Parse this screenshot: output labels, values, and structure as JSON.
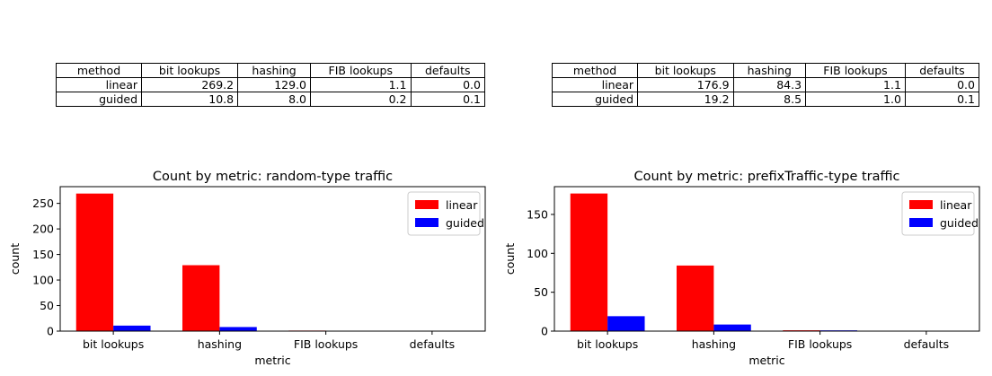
{
  "tables": [
    {
      "headers": [
        "method",
        "bit lookups",
        "hashing",
        "FIB lookups",
        "defaults"
      ],
      "rows": [
        [
          "linear",
          "269.2",
          "129.0",
          "1.1",
          "0.0"
        ],
        [
          "guided",
          "10.8",
          "8.0",
          "0.2",
          "0.1"
        ]
      ]
    },
    {
      "headers": [
        "method",
        "bit lookups",
        "hashing",
        "FIB lookups",
        "defaults"
      ],
      "rows": [
        [
          "linear",
          "176.9",
          "84.3",
          "1.1",
          "0.0"
        ],
        [
          "guided",
          "19.2",
          "8.5",
          "1.0",
          "0.1"
        ]
      ]
    }
  ],
  "chart_data": [
    {
      "type": "bar",
      "title": "Count by metric: random-type traffic",
      "xlabel": "metric",
      "ylabel": "count",
      "categories": [
        "bit lookups",
        "hashing",
        "FIB lookups",
        "defaults"
      ],
      "series": [
        {
          "name": "linear",
          "color": "#ff0000",
          "values": [
            269.2,
            129.0,
            1.1,
            0.0
          ]
        },
        {
          "name": "guided",
          "color": "#0000ff",
          "values": [
            10.8,
            8.0,
            0.2,
            0.1
          ]
        }
      ],
      "ylim": [
        0,
        282.7
      ],
      "yticks": [
        0,
        50,
        100,
        150,
        200,
        250
      ],
      "legend": "upper right",
      "grid": false
    },
    {
      "type": "bar",
      "title": "Count by metric: prefixTraffic-type traffic",
      "xlabel": "metric",
      "ylabel": "count",
      "categories": [
        "bit lookups",
        "hashing",
        "FIB lookups",
        "defaults"
      ],
      "series": [
        {
          "name": "linear",
          "color": "#ff0000",
          "values": [
            176.9,
            84.3,
            1.1,
            0.0
          ]
        },
        {
          "name": "guided",
          "color": "#0000ff",
          "values": [
            19.2,
            8.5,
            1.0,
            0.1
          ]
        }
      ],
      "ylim": [
        0,
        185.7
      ],
      "yticks": [
        0,
        50,
        100,
        150
      ],
      "legend": "upper right",
      "grid": false
    }
  ]
}
